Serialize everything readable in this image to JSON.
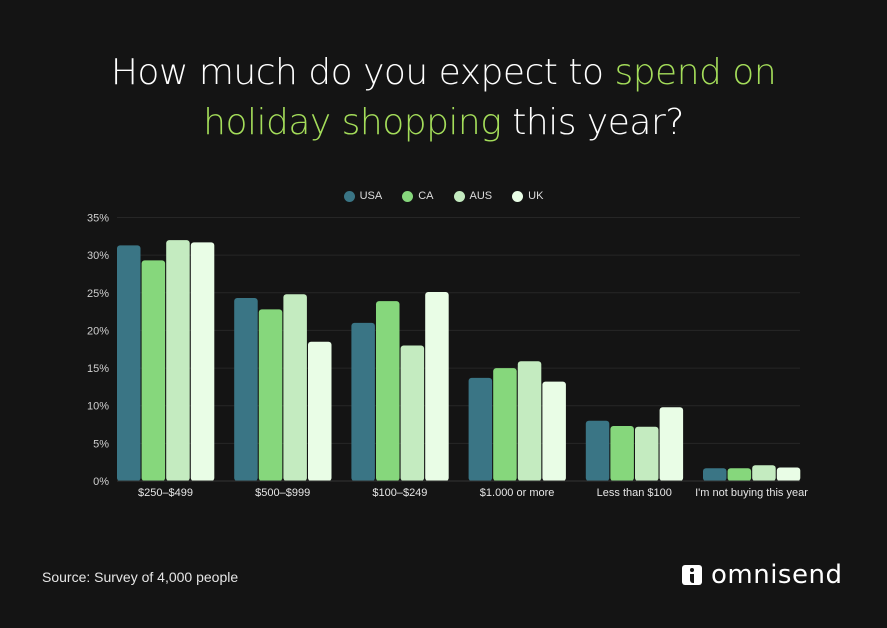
{
  "title": {
    "part1": "How much do you expect to ",
    "highlight1": "spend on",
    "highlight2": "holiday shopping",
    "part2": " this year?"
  },
  "source": "Source: Survey of 4,000 people",
  "brand": "omnisend",
  "colors": {
    "background": "#141414",
    "highlight": "#a4dd5a"
  },
  "chart_data": {
    "type": "bar",
    "title": "How much do you expect to spend on holiday shopping this year?",
    "categories": [
      "$250–$499",
      "$500–$999",
      "$100–$249",
      "$1.000 or more",
      "Less than $100",
      "I'm not buying this year"
    ],
    "series": [
      {
        "name": "USA",
        "color": "#3a7585",
        "values": [
          31.3,
          24.3,
          21.0,
          13.7,
          8.0,
          1.7
        ]
      },
      {
        "name": "CA",
        "color": "#86d77c",
        "values": [
          29.3,
          22.8,
          23.9,
          15.0,
          7.3,
          1.7
        ]
      },
      {
        "name": "AUS",
        "color": "#c4ebc0",
        "values": [
          32.0,
          24.8,
          18.0,
          15.9,
          7.2,
          2.1
        ]
      },
      {
        "name": "UK",
        "color": "#e9fde6",
        "values": [
          31.7,
          18.5,
          25.1,
          13.2,
          9.8,
          1.8
        ]
      }
    ],
    "yticks": [
      "0%",
      "5%",
      "10%",
      "15%",
      "20%",
      "25%",
      "30%",
      "35%"
    ],
    "ylim": [
      0,
      35
    ],
    "grid": true,
    "legend": "top-center",
    "xlabel": "",
    "ylabel": ""
  }
}
